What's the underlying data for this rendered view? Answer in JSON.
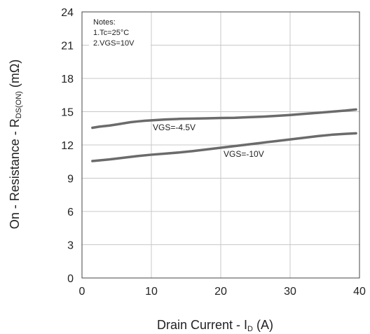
{
  "chart_data": {
    "type": "line",
    "xlabel": {
      "prefix": "Drain Current - I",
      "sub": "D",
      "suffix": " (A)"
    },
    "ylabel": {
      "prefix": "On - Resistance - R",
      "sub": "DS(ON)",
      "suffix": " (mΩ)"
    },
    "xlim": [
      0,
      40
    ],
    "ylim": [
      0,
      24
    ],
    "xticks": [
      0,
      10,
      20,
      30,
      40
    ],
    "yticks": [
      0,
      3,
      6,
      9,
      12,
      15,
      18,
      21,
      24
    ],
    "grid": true,
    "notes": [
      "Notes:",
      "1.Tc=25°C",
      "2.VGS=10V"
    ],
    "series": [
      {
        "name": "VGS=-4.5V",
        "color": "#6b6b6b",
        "x": [
          1.5,
          2.5,
          4,
          5,
          6,
          7,
          8,
          9,
          10,
          12,
          14,
          16,
          18,
          20,
          22,
          24,
          26,
          28,
          30,
          32,
          34,
          36,
          38,
          39.5
        ],
        "y": [
          13.55,
          13.65,
          13.75,
          13.85,
          13.95,
          14.05,
          14.12,
          14.18,
          14.22,
          14.3,
          14.35,
          14.38,
          14.4,
          14.43,
          14.45,
          14.5,
          14.55,
          14.62,
          14.7,
          14.8,
          14.9,
          15.0,
          15.1,
          15.2
        ]
      },
      {
        "name": "VGS=-10V",
        "color": "#6b6b6b",
        "x": [
          1.5,
          4,
          6,
          8,
          10,
          12,
          14,
          16,
          18,
          20,
          22,
          24,
          26,
          28,
          30,
          32,
          34,
          36,
          38,
          39.5
        ],
        "y": [
          10.55,
          10.7,
          10.85,
          11.0,
          11.12,
          11.22,
          11.32,
          11.45,
          11.6,
          11.75,
          11.9,
          12.05,
          12.2,
          12.35,
          12.5,
          12.65,
          12.8,
          12.92,
          13.0,
          13.05
        ]
      }
    ]
  }
}
